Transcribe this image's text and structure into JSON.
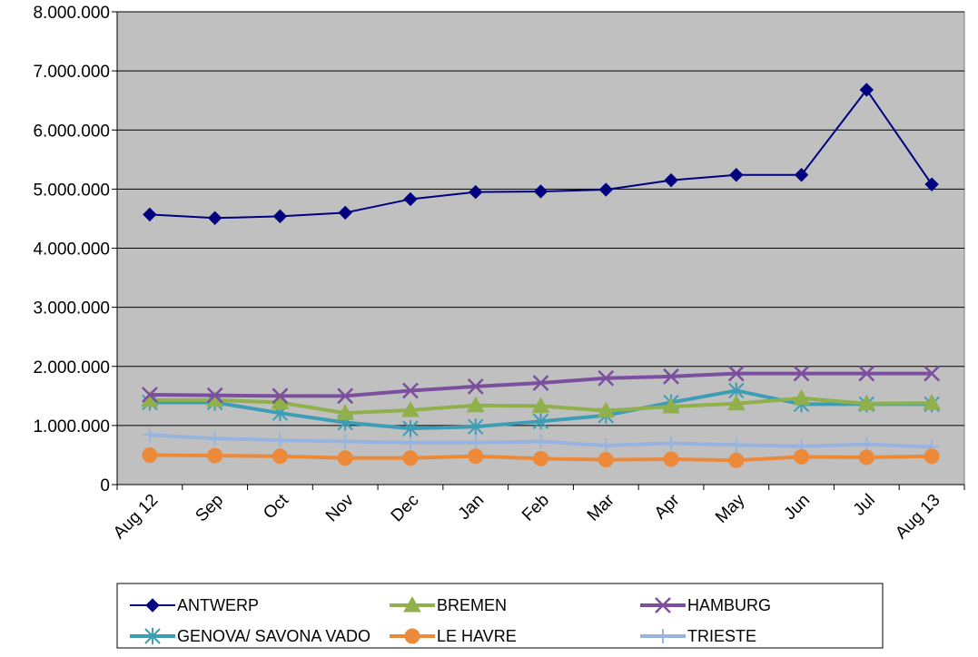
{
  "chart_data": {
    "type": "line",
    "title": "",
    "xlabel": "",
    "ylabel": "",
    "categories": [
      "Aug 12",
      "Sep",
      "Oct",
      "Nov",
      "Dec",
      "Jan",
      "Feb",
      "Mar",
      "Apr",
      "May",
      "Jun",
      "Jul",
      "Aug 13"
    ],
    "ylim": [
      0,
      8000000
    ],
    "yticks": [
      {
        "value": 0,
        "label": "0"
      },
      {
        "value": 1000000,
        "label": "1.000.000"
      },
      {
        "value": 2000000,
        "label": "2.000.000"
      },
      {
        "value": 3000000,
        "label": "3.000.000"
      },
      {
        "value": 4000000,
        "label": "4.000.000"
      },
      {
        "value": 5000000,
        "label": "5.000.000"
      },
      {
        "value": 6000000,
        "label": "6.000.000"
      },
      {
        "value": 7000000,
        "label": "7.000.000"
      },
      {
        "value": 8000000,
        "label": "8.000.000"
      }
    ],
    "grid": true,
    "plot_background": "#c0c0c0",
    "legend_position": "bottom",
    "series": [
      {
        "name": "ANTWERP",
        "color": "#000080",
        "marker": "diamond",
        "values": [
          4570000,
          4510000,
          4540000,
          4600000,
          4830000,
          4950000,
          4960000,
          4990000,
          5150000,
          5240000,
          5240000,
          6680000,
          5080000
        ]
      },
      {
        "name": "BREMEN",
        "color": "#8fb04a",
        "marker": "triangle",
        "values": [
          1430000,
          1430000,
          1390000,
          1210000,
          1260000,
          1340000,
          1330000,
          1250000,
          1320000,
          1370000,
          1460000,
          1370000,
          1380000
        ]
      },
      {
        "name": "HAMBURG",
        "color": "#7c4f9e",
        "marker": "x",
        "values": [
          1520000,
          1510000,
          1500000,
          1500000,
          1590000,
          1660000,
          1720000,
          1800000,
          1830000,
          1880000,
          1880000,
          1880000,
          1880000
        ]
      },
      {
        "name": "GENOVA/ SAVONA VADO",
        "color": "#3c9db5",
        "marker": "star",
        "values": [
          1390000,
          1390000,
          1210000,
          1050000,
          950000,
          980000,
          1070000,
          1170000,
          1390000,
          1590000,
          1360000,
          1360000,
          1360000
        ]
      },
      {
        "name": "LE HAVRE",
        "color": "#ec8a3a",
        "marker": "circle",
        "values": [
          500000,
          490000,
          480000,
          450000,
          450000,
          480000,
          440000,
          420000,
          430000,
          410000,
          470000,
          460000,
          480000
        ]
      },
      {
        "name": "TRIESTE",
        "color": "#97b3df",
        "marker": "plus",
        "values": [
          840000,
          780000,
          750000,
          730000,
          710000,
          710000,
          730000,
          660000,
          700000,
          670000,
          650000,
          680000,
          640000
        ]
      }
    ]
  }
}
